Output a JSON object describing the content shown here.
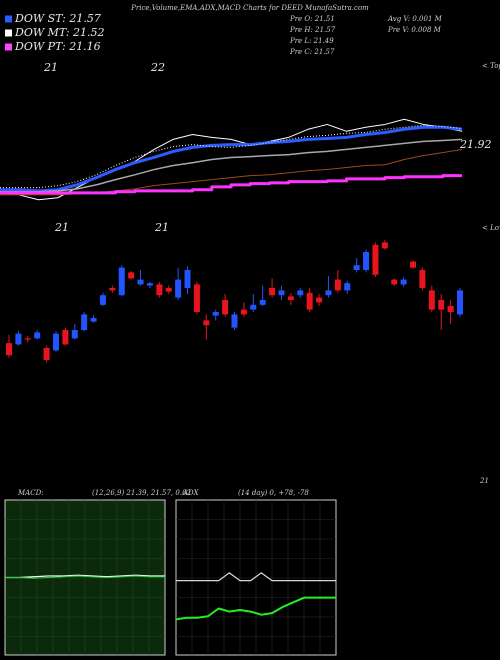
{
  "header": {
    "title": "Price,Volume,EMA,ADX,MACD Charts for DEED MunafaSutra.com"
  },
  "legend": [
    {
      "label": "DOW ST: 21.57",
      "color": "#2a5cff"
    },
    {
      "label": "DOW MT: 21.52",
      "color": "#ffffff"
    },
    {
      "label": "DOW PT: 21.16",
      "color": "#ff44ff"
    }
  ],
  "stats": [
    "Pre   O: 21.51",
    "Pre   H: 21.57",
    "Pre   L: 21.49",
    "Pre   C: 21.57",
    "Avg V: 0.001 M",
    "Pre   V: 0.008 M"
  ],
  "chart_data": [
    {
      "type": "line",
      "ylim": [
        20.4,
        24.0
      ],
      "date_labels": [
        "21",
        "22"
      ],
      "side_label": "< Tops",
      "value_label": "21.92",
      "series": [
        {
          "color": "#ffffff",
          "values": [
            20.78,
            20.65,
            20.53,
            20.58,
            20.83,
            21.08,
            21.28,
            21.48,
            21.78,
            22.03,
            22.15,
            22.08,
            22.03,
            21.9,
            21.98,
            22.08,
            22.28,
            22.4,
            22.23,
            22.33,
            22.4,
            22.53,
            22.4,
            22.33,
            22.23
          ]
        },
        {
          "color": "#2a5cff",
          "values": [
            20.78,
            20.78,
            20.75,
            20.78,
            20.9,
            21.08,
            21.28,
            21.45,
            21.58,
            21.73,
            21.83,
            21.88,
            21.9,
            21.9,
            21.95,
            21.98,
            22.03,
            22.05,
            22.08,
            22.15,
            22.2,
            22.28,
            22.33,
            22.33,
            22.28
          ]
        },
        {
          "color": "#ffffff",
          "values": [
            20.83,
            20.83,
            20.83,
            20.88,
            20.98,
            21.15,
            21.38,
            21.58,
            21.73,
            21.85,
            21.9,
            21.85,
            21.83,
            21.88,
            21.95,
            22.03,
            22.1,
            22.13,
            22.18,
            22.2,
            22.28,
            22.33,
            22.38,
            22.35,
            22.3
          ]
        },
        {
          "color": "#a8a8a8",
          "values": [
            20.73,
            20.73,
            20.73,
            20.75,
            20.8,
            20.9,
            21.03,
            21.15,
            21.28,
            21.38,
            21.45,
            21.53,
            21.58,
            21.6,
            21.63,
            21.65,
            21.7,
            21.73,
            21.78,
            21.83,
            21.88,
            21.93,
            21.98,
            22.0,
            22.03
          ]
        },
        {
          "color": "#9a4a1c",
          "values": [
            20.65,
            20.65,
            20.65,
            20.65,
            20.68,
            20.7,
            20.75,
            20.8,
            20.88,
            20.93,
            20.98,
            21.03,
            21.08,
            21.13,
            21.15,
            21.2,
            21.25,
            21.28,
            21.33,
            21.38,
            21.4,
            21.53,
            21.63,
            21.7,
            21.78
          ]
        },
        {
          "color": "#ff33ff",
          "drawstyle": "steps",
          "values": [
            20.7,
            20.7,
            20.7,
            20.7,
            20.7,
            20.7,
            20.73,
            20.75,
            20.75,
            20.75,
            20.78,
            20.85,
            20.9,
            20.93,
            20.95,
            20.98,
            20.98,
            21.0,
            21.05,
            21.05,
            21.08,
            21.1,
            21.1,
            21.13,
            21.13
          ]
        }
      ]
    },
    {
      "type": "candlestick",
      "ylim": [
        21.0,
        22.0
      ],
      "date_labels": [
        "21",
        "21"
      ],
      "side_label": "< Lows",
      "footer_label": "21",
      "up_color": "#2255ff",
      "down_color": "#e8141e",
      "open": [
        21.14,
        21.13,
        21.18,
        21.18,
        21.1,
        21.08,
        21.25,
        21.18,
        21.25,
        21.32,
        21.46,
        21.6,
        21.54,
        21.73,
        21.63,
        21.62,
        21.63,
        21.6,
        21.52,
        21.6,
        21.63,
        21.33,
        21.37,
        21.5,
        21.27,
        21.42,
        21.42,
        21.46,
        21.6,
        21.54,
        21.53,
        21.54,
        21.56,
        21.52,
        21.54,
        21.67,
        21.58,
        21.75,
        21.75,
        21.96,
        21.98,
        21.67,
        21.63,
        21.82,
        21.75,
        21.58,
        21.5,
        21.45,
        21.38
      ],
      "high": [
        21.21,
        21.24,
        21.2,
        21.25,
        21.12,
        21.24,
        21.27,
        21.3,
        21.4,
        21.37,
        21.56,
        21.62,
        21.79,
        21.74,
        21.75,
        21.65,
        21.65,
        21.62,
        21.77,
        21.78,
        21.65,
        21.38,
        21.42,
        21.55,
        21.4,
        21.48,
        21.55,
        21.62,
        21.68,
        21.62,
        21.56,
        21.6,
        21.6,
        21.55,
        21.7,
        21.75,
        21.66,
        21.85,
        21.92,
        21.98,
        22.0,
        21.68,
        21.69,
        21.83,
        21.77,
        21.62,
        21.55,
        21.5,
        21.6
      ],
      "low": [
        21.02,
        21.12,
        21.15,
        21.17,
        20.98,
        21.07,
        21.12,
        21.17,
        21.24,
        21.31,
        21.45,
        21.56,
        21.53,
        21.67,
        21.62,
        21.6,
        21.52,
        21.55,
        21.5,
        21.55,
        21.38,
        21.17,
        21.33,
        21.36,
        21.25,
        21.36,
        21.4,
        21.45,
        21.52,
        21.5,
        21.46,
        21.52,
        21.4,
        21.45,
        21.52,
        21.56,
        21.55,
        21.73,
        21.73,
        21.69,
        21.92,
        21.62,
        21.61,
        21.76,
        21.58,
        21.4,
        21.25,
        21.3,
        21.36
      ],
      "close": [
        21.04,
        21.22,
        21.17,
        21.23,
        21.0,
        21.22,
        21.13,
        21.25,
        21.38,
        21.35,
        21.54,
        21.58,
        21.77,
        21.68,
        21.67,
        21.64,
        21.54,
        21.57,
        21.67,
        21.75,
        21.4,
        21.29,
        21.4,
        21.38,
        21.38,
        21.38,
        21.46,
        21.5,
        21.54,
        21.58,
        21.5,
        21.58,
        21.42,
        21.48,
        21.58,
        21.58,
        21.64,
        21.79,
        21.9,
        21.71,
        21.93,
        21.63,
        21.67,
        21.77,
        21.6,
        21.42,
        21.42,
        21.4,
        21.58
      ]
    },
    {
      "type": "line",
      "title": "MACD:",
      "subtitle": "(12,26,9) 21.39, 21.57, 0.02",
      "ylim": [
        -1,
        1
      ],
      "background": "#0b2a0b",
      "series": [
        {
          "color": "#ffffff",
          "values": [
            0,
            0,
            0.01,
            0.02,
            0.02,
            0.03,
            0.02,
            0.01,
            0.02,
            0.03,
            0.02,
            0.02
          ]
        },
        {
          "color": "#2ecc40",
          "values": [
            0,
            0,
            -0.01,
            0,
            0.01,
            0.02,
            0.01,
            0,
            0.01,
            0.02,
            0.01,
            0.01
          ]
        }
      ]
    },
    {
      "type": "line",
      "title": "ADX",
      "subtitle": "(14 day) 0, +78, -78",
      "ylim": [
        0,
        100
      ],
      "background": "#000000",
      "series": [
        {
          "color": "#d8d8d8",
          "values": [
            48,
            48,
            48,
            48,
            48,
            53,
            48,
            48,
            53,
            48,
            48,
            48,
            48,
            48,
            48,
            48
          ]
        },
        {
          "color": "#22ee22",
          "values": [
            23,
            24,
            24,
            25,
            30,
            28,
            29,
            28,
            26,
            27,
            31,
            34,
            37,
            37,
            37,
            37
          ]
        }
      ]
    }
  ]
}
